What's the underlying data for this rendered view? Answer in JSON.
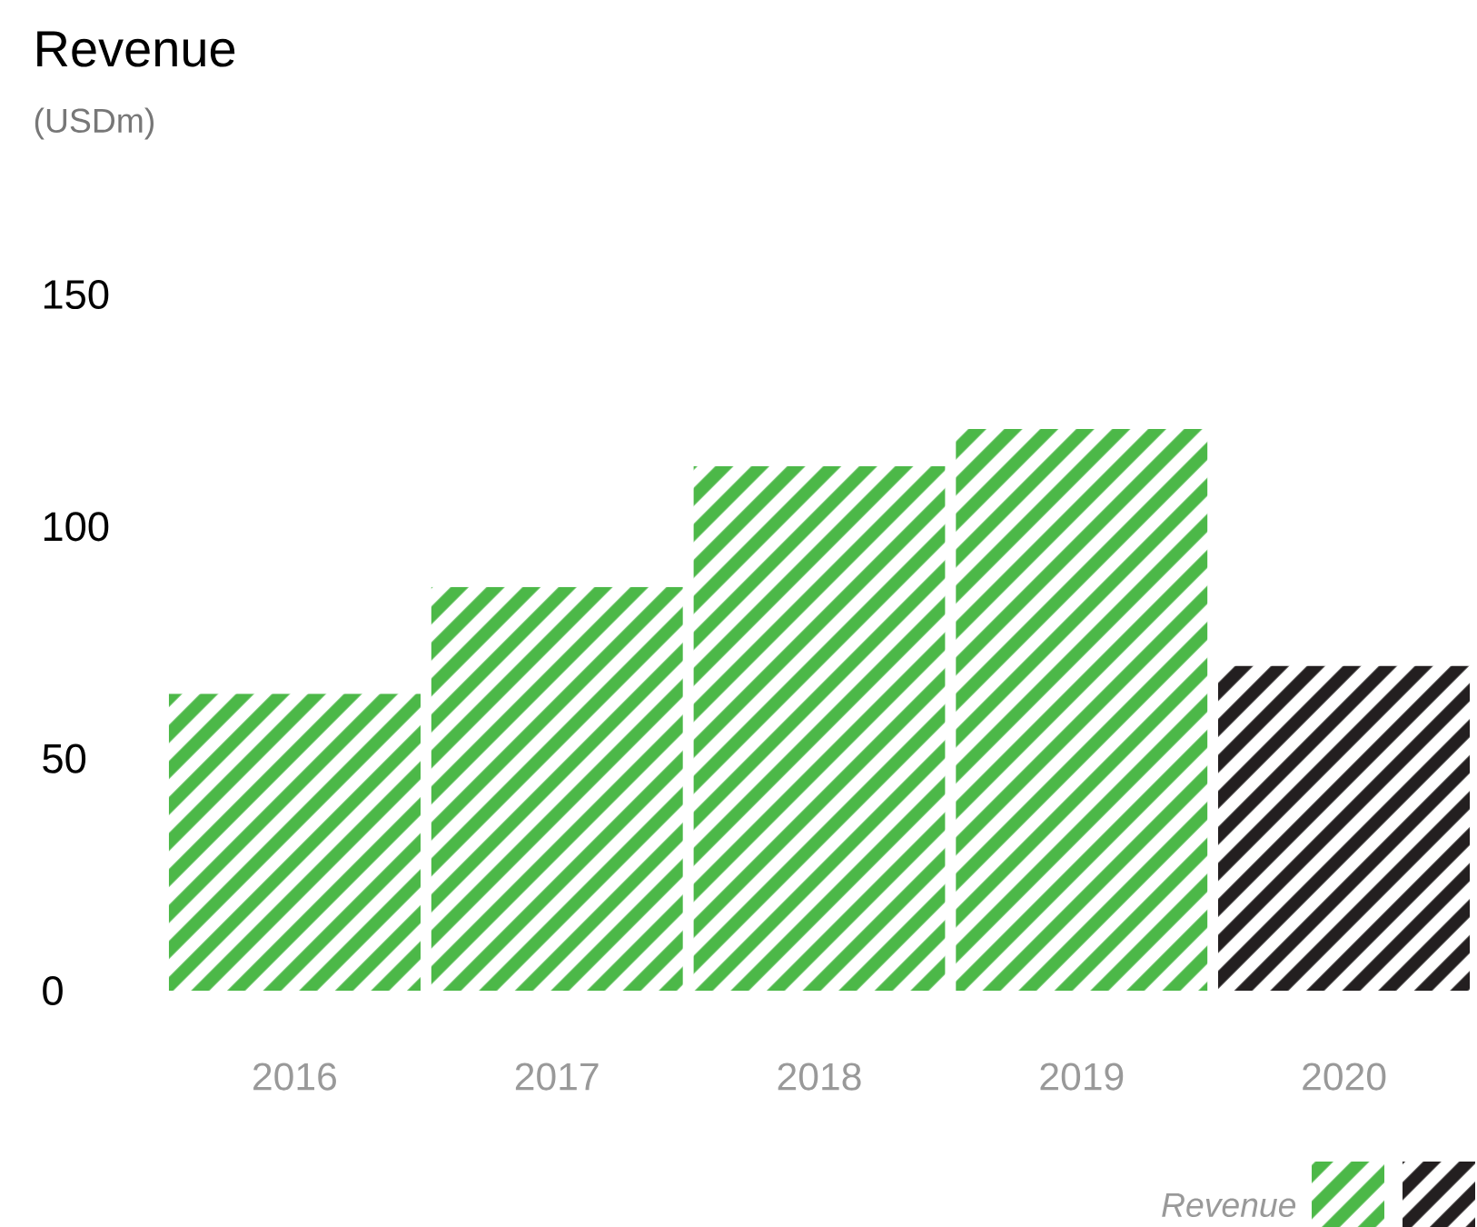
{
  "chart_data": {
    "type": "bar",
    "title": "Revenue",
    "subtitle": "(USDm)",
    "categories": [
      "2016",
      "2017",
      "2018",
      "2019",
      "2020"
    ],
    "series": [
      {
        "name": "Revenue",
        "colors": [
          "#4cb848",
          "#4cb848",
          "#4cb848",
          "#4cb848",
          "#231f20"
        ],
        "values": [
          64,
          87,
          113,
          121,
          70
        ]
      }
    ],
    "ylim": [
      0,
      150
    ],
    "yticks": [
      0,
      50,
      100,
      150
    ],
    "legend": "bottom right"
  }
}
